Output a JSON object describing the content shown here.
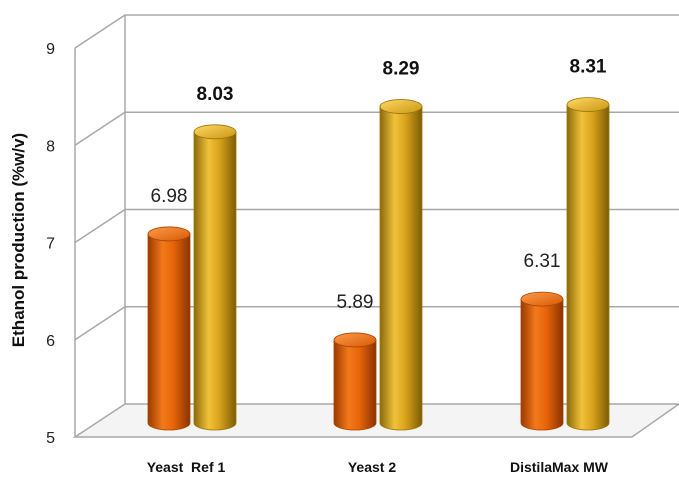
{
  "chart_data": {
    "type": "bar",
    "style": "3d-cylinder",
    "categories": [
      "Yeast  Ref 1",
      "Yeast 2",
      "DistilaMax MW"
    ],
    "series": [
      {
        "values": [
          6.98,
          5.89,
          6.31
        ],
        "color": "#E8650A",
        "label_weight": "normal"
      },
      {
        "values": [
          8.03,
          8.29,
          8.31
        ],
        "color": "#D9A41C",
        "label_weight": "bold"
      }
    ],
    "ylabel": "Ethanol production (%w/v)",
    "ylim": [
      5,
      9
    ],
    "yticks": [
      5,
      6,
      7,
      8,
      9
    ],
    "grid": true
  }
}
